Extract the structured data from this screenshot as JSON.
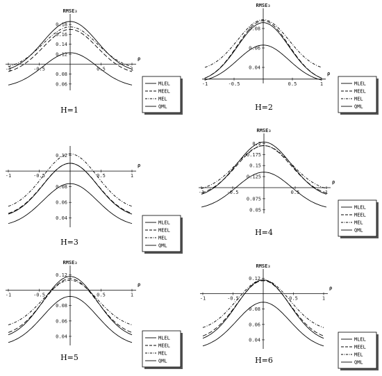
{
  "chart_data": [
    {
      "type": "line",
      "title": "H=1",
      "ylabel": "RMSE₃",
      "xlabel": "ρ",
      "xlim": [
        -1,
        1
      ],
      "x_ticks": [
        "-1",
        "-0.5",
        "0.5",
        "1"
      ],
      "ylim": [
        0.05,
        0.19
      ],
      "x_axis_y": 0.1,
      "y_ticks": [
        "0.06",
        "0.08",
        "0.12",
        "0.14",
        "0.16",
        "0.18"
      ],
      "legend": {
        "placement": "bottom-right"
      },
      "series": [
        {
          "name": "MLEL",
          "style": "solid",
          "peak": 0.186,
          "at_rho_pm1": 0.09
        },
        {
          "name": "MEEL",
          "style": "dashed",
          "peak": 0.17,
          "at_rho_pm1": 0.085
        },
        {
          "name": "MEL",
          "style": "dashdot",
          "peak": 0.175,
          "at_rho_pm1": 0.095
        },
        {
          "name": "QML",
          "style": "solid",
          "peak": 0.123,
          "at_rho_pm1": 0.058
        }
      ]
    },
    {
      "type": "line",
      "title": "H=2",
      "ylabel": "RMSE₃",
      "xlabel": "ρ",
      "xlim": [
        -1,
        1
      ],
      "x_ticks": [
        "-1",
        "-0.5",
        "0.5",
        "1"
      ],
      "ylim": [
        0.025,
        0.095
      ],
      "x_axis_y": 0.028,
      "y_ticks": [
        "0.04",
        "0.06",
        "0.08"
      ],
      "legend": {
        "placement": "bottom-right"
      },
      "series": [
        {
          "name": "MLEL",
          "style": "solid",
          "peak": 0.086,
          "at_rho_pm1": 0.029
        },
        {
          "name": "MEEL",
          "style": "dashed",
          "peak": 0.088,
          "at_rho_pm1": 0.029
        },
        {
          "name": "MEL",
          "style": "dashdot",
          "peak": 0.089,
          "at_rho_pm1": 0.04
        },
        {
          "name": "QML",
          "style": "solid",
          "peak": 0.063,
          "at_rho_pm1": 0.027
        }
      ]
    },
    {
      "type": "line",
      "title": "H=3",
      "ylabel": "",
      "xlabel": "ρ",
      "xlim": [
        -1,
        1
      ],
      "x_ticks": [
        "-1",
        "-0.5",
        "0.5",
        "1"
      ],
      "ylim": [
        0.03,
        0.125
      ],
      "x_axis_y": 0.1,
      "y_ticks": [
        "0.04",
        "0.06",
        "0.08",
        "0.12"
      ],
      "legend": {
        "placement": "bottom-right"
      },
      "series": [
        {
          "name": "MLEL",
          "style": "solid",
          "peak": 0.11,
          "at_rho_pm1": 0.045
        },
        {
          "name": "MEEL",
          "style": "dashed",
          "peak": 0.11,
          "at_rho_pm1": 0.046
        },
        {
          "name": "MEL",
          "style": "dashdot",
          "peak": 0.122,
          "at_rho_pm1": 0.055
        },
        {
          "name": "QML",
          "style": "solid",
          "peak": 0.084,
          "at_rho_pm1": 0.033
        }
      ]
    },
    {
      "type": "line",
      "title": "H=4",
      "ylabel": "RMSE₃",
      "xlabel": "ρ",
      "xlim": [
        -1,
        1
      ],
      "x_ticks": [
        "-1",
        "-0.5",
        "0.5",
        "1"
      ],
      "ylim": [
        0.045,
        0.21
      ],
      "x_axis_y": 0.1,
      "y_ticks": [
        "0.05",
        "0.075",
        "0.125",
        "0.15",
        "0.175",
        "0.2"
      ],
      "legend": {
        "placement": "bottom-right"
      },
      "series": [
        {
          "name": "MLEL",
          "style": "solid",
          "peak": 0.203,
          "at_rho_pm1": 0.085
        },
        {
          "name": "MEEL",
          "style": "dashed",
          "peak": 0.195,
          "at_rho_pm1": 0.088
        },
        {
          "name": "MEL",
          "style": "dashdot",
          "peak": 0.195,
          "at_rho_pm1": 0.098
        },
        {
          "name": "QML",
          "style": "solid",
          "peak": 0.135,
          "at_rho_pm1": 0.056
        }
      ]
    },
    {
      "type": "line",
      "title": "H=5",
      "ylabel": "RMSE₃",
      "xlabel": "ρ",
      "xlim": [
        -1,
        1
      ],
      "x_ticks": [
        "-1",
        "-0.5",
        "0.5",
        "1"
      ],
      "ylim": [
        0.03,
        0.125
      ],
      "x_axis_y": 0.1,
      "y_ticks": [
        "0.04",
        "0.06",
        "0.08",
        "0.12"
      ],
      "legend": {
        "placement": "bottom-right"
      },
      "series": [
        {
          "name": "MLEL",
          "style": "solid",
          "peak": 0.118,
          "at_rho_pm1": 0.042
        },
        {
          "name": "MEEL",
          "style": "dashed",
          "peak": 0.115,
          "at_rho_pm1": 0.045
        },
        {
          "name": "MEL",
          "style": "dashdot",
          "peak": 0.113,
          "at_rho_pm1": 0.055
        },
        {
          "name": "QML",
          "style": "solid",
          "peak": 0.092,
          "at_rho_pm1": 0.032
        }
      ]
    },
    {
      "type": "line",
      "title": "H=6",
      "ylabel": "RMSE₃",
      "xlabel": "ρ",
      "xlim": [
        -1,
        1
      ],
      "x_ticks": [
        "-1",
        "-0.5",
        "0.5",
        "1"
      ],
      "ylim": [
        0.03,
        0.125
      ],
      "x_axis_y": 0.1,
      "y_ticks": [
        "0.04",
        "0.06",
        "0.08",
        "0.12"
      ],
      "legend": {
        "placement": "bottom-right"
      },
      "series": [
        {
          "name": "MLEL",
          "style": "solid",
          "peak": 0.118,
          "at_rho_pm1": 0.042
        },
        {
          "name": "MEEL",
          "style": "dashed",
          "peak": 0.117,
          "at_rho_pm1": 0.045
        },
        {
          "name": "MEL",
          "style": "dashdot",
          "peak": 0.118,
          "at_rho_pm1": 0.056
        },
        {
          "name": "QML",
          "style": "solid",
          "peak": 0.089,
          "at_rho_pm1": 0.032
        }
      ]
    }
  ],
  "colors": {
    "line": "#000000",
    "shadow": "#555555",
    "background": "#ffffff"
  }
}
